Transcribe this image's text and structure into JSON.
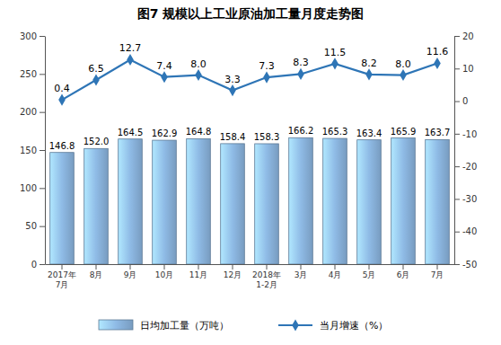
{
  "chart_data": {
    "type": "bar",
    "title": "图7 规模以上工业原油加工量月度走势图",
    "categories": [
      "2017年7月",
      "8月",
      "9月",
      "10月",
      "11月",
      "12月",
      "2018年1-2月",
      "3月",
      "4月",
      "5月",
      "6月",
      "7月"
    ],
    "series": [
      {
        "name": "日均加工量（万吨）",
        "type": "bar",
        "color": "#8fbbe6",
        "values": [
          146.8,
          152.0,
          164.5,
          162.9,
          164.8,
          158.4,
          158.3,
          166.2,
          165.3,
          163.4,
          165.9,
          163.7
        ],
        "value_labels": [
          "146.8",
          "152.0",
          "164.5",
          "162.9",
          "164.8",
          "158.4",
          "158.3",
          "166.2",
          "165.3",
          "163.4",
          "165.9",
          "163.7"
        ]
      },
      {
        "name": "当月增速（%）",
        "type": "line",
        "axis": "y2",
        "color": "#2e75b6",
        "marker": "diamond",
        "values": [
          0.4,
          6.5,
          12.7,
          7.4,
          8.0,
          3.3,
          7.3,
          8.3,
          11.5,
          8.2,
          8.0,
          11.6
        ],
        "value_labels": [
          "0.4",
          "6.5",
          "12.7",
          "7.4",
          "8.0",
          "3.3",
          "7.3",
          "8.3",
          "11.5",
          "8.2",
          "8.0",
          "11.6"
        ]
      }
    ],
    "ylim": [
      0,
      300
    ],
    "yticks": [
      0,
      50,
      100,
      150,
      200,
      250,
      300
    ],
    "y2lim": [
      -50,
      20
    ],
    "y2ticks": [
      -50,
      -40,
      -30,
      -20,
      -10,
      0,
      10,
      20
    ],
    "grid": false,
    "legend": "bottom",
    "data_labels": true
  }
}
